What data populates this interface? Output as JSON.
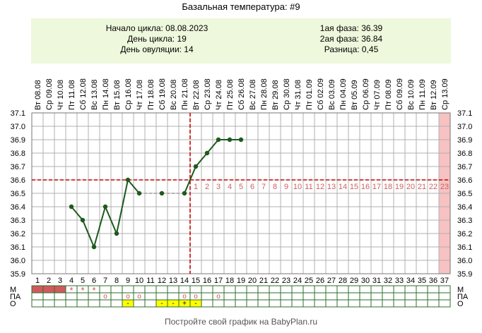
{
  "title": "Базальная температура: #9",
  "info": {
    "cycle_start": "Начало цикла: 08.08.2023",
    "cycle_day": "День цикла: 19",
    "ovulation_day": "День овуляции: 14",
    "phase1": "1ая фаза: 36.39",
    "phase2": "2ая фаза: 36.84",
    "difference": "Разница: 0,45"
  },
  "footer": "Постройте свой график на BabyPlan.ru",
  "colors": {
    "line": "#1d5a1d",
    "cover": "#b3b3b3",
    "ovulation": "#cc0000",
    "highlight": "#f7c2c2",
    "m_fill": "#d05a5a",
    "mark": "#d05050",
    "yellow": "#ffff00",
    "grid": "#b0b0b0",
    "info_bg": "#eef8dc"
  },
  "chart_data": {
    "type": "line",
    "ylim": [
      35.9,
      37.1
    ],
    "yticks": [
      "35.9",
      "36.0",
      "36.1",
      "36.2",
      "36.3",
      "36.4",
      "36.5",
      "36.6",
      "36.7",
      "36.8",
      "36.9",
      "37.0",
      "37.1"
    ],
    "days": [
      "1",
      "2",
      "3",
      "4",
      "5",
      "6",
      "7",
      "8",
      "9",
      "10",
      "11",
      "12",
      "13",
      "14",
      "15",
      "16",
      "17",
      "18",
      "19",
      "20",
      "21",
      "22",
      "23",
      "24",
      "25",
      "26",
      "27",
      "28",
      "29",
      "30",
      "31",
      "32",
      "33",
      "34",
      "35",
      "36",
      "37"
    ],
    "dates": [
      "Вт 08.08",
      "Ср 09.08",
      "Чт 10.08",
      "Пт 11.08",
      "Сб 12.08",
      "Вс 13.08",
      "Пн 14.08",
      "Вт 15.08",
      "Ср 16.08",
      "Чт 17.08",
      "Пт 18.08",
      "Сб 19.08",
      "Вс 20.08",
      "Пн 21.08",
      "Вт 22.08",
      "Ср 23.08",
      "Чт 24.08",
      "Пт 25.08",
      "Сб 26.08",
      "Вс 27.08",
      "Пн 28.08",
      "Вт 29.08",
      "Ср 30.08",
      "Чт 31.08",
      "Пт 01.09",
      "Сб 02.09",
      "Вс 03.09",
      "Пн 04.09",
      "Вт 05.09",
      "Ср 06.09",
      "Чт 07.09",
      "Пт 08.09",
      "Сб 09.09",
      "Вс 10.09",
      "Пн 11.09",
      "Вт 12.09",
      "Ср 13.09"
    ],
    "temperatures": [
      null,
      null,
      null,
      36.4,
      36.3,
      36.1,
      36.4,
      36.2,
      36.6,
      36.5,
      null,
      36.5,
      null,
      36.5,
      36.7,
      36.8,
      36.9,
      36.9,
      36.9
    ],
    "covered_days": [
      10,
      11,
      12,
      13,
      14
    ],
    "ovulation_day": 14,
    "coverline": 36.6,
    "luteal_labels": [
      "1",
      "2",
      "3",
      "4",
      "5",
      "6",
      "7",
      "8",
      "9",
      "10",
      "11",
      "12",
      "13",
      "14",
      "15",
      "16",
      "17",
      "18",
      "19",
      "20",
      "21",
      "22",
      "23"
    ],
    "highlight_day": 37,
    "rows": [
      {
        "label": "М",
        "cells": {
          "1": "fill",
          "2": "fill",
          "3": "fill",
          "4": "*",
          "5": "*",
          "6": "*"
        }
      },
      {
        "label": "ПА",
        "cells": {
          "7": "o",
          "9": "o",
          "10": "o",
          "14": "o",
          "15": "o",
          "17": "o"
        }
      },
      {
        "label": "О",
        "cells": {
          "9": "-",
          "12": "-",
          "13": "-",
          "14": "+",
          "15": "-"
        }
      }
    ]
  }
}
